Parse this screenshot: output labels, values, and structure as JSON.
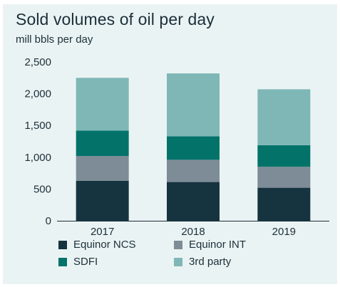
{
  "chart_data": {
    "type": "bar",
    "stacked": true,
    "title": "Sold volumes of oil per day",
    "subtitle": "mill bbls per day",
    "categories": [
      "2017",
      "2018",
      "2019"
    ],
    "series": [
      {
        "name": "Equinor NCS",
        "color": "#163440",
        "values": [
          630,
          610,
          520
        ]
      },
      {
        "name": "Equinor INT",
        "color": "#7d8c96",
        "values": [
          390,
          350,
          330
        ]
      },
      {
        "name": "SDFI",
        "color": "#03736a",
        "values": [
          400,
          370,
          340
        ]
      },
      {
        "name": "3rd party",
        "color": "#7fb7b7",
        "values": [
          830,
          990,
          880
        ]
      }
    ],
    "ylim": [
      0,
      2500
    ],
    "yticks": [
      "0",
      "500",
      "1,000",
      "1,500",
      "2,000",
      "2,500"
    ],
    "ytick_values": [
      0,
      500,
      1000,
      1500,
      2000,
      2500
    ],
    "legend": "bottom",
    "grid": false
  }
}
